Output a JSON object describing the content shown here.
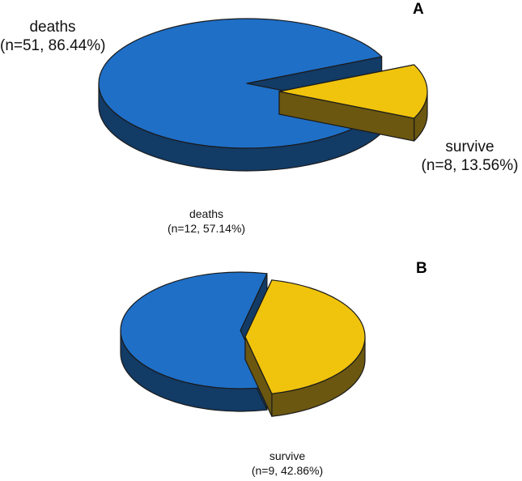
{
  "chart_data": [
    {
      "type": "pie",
      "panel": "A",
      "three_d": true,
      "exploded": "survive",
      "slices": [
        {
          "name": "deaths",
          "n": 51,
          "percent": 86.44,
          "line1": "deaths",
          "line2": "(n=51, 86.44%)",
          "color": "#1f6fc7",
          "side_color": "#123b66"
        },
        {
          "name": "survive",
          "n": 8,
          "percent": 13.56,
          "line1": "survive",
          "line2": "(n=8, 13.56%)",
          "color": "#f0c30c",
          "side_color": "#6b5710"
        }
      ]
    },
    {
      "type": "pie",
      "panel": "B",
      "three_d": true,
      "exploded": "survive",
      "slices": [
        {
          "name": "deaths",
          "n": 12,
          "percent": 57.14,
          "line1": "deaths",
          "line2": "(n=12, 57.14%)",
          "color": "#1f6fc7",
          "side_color": "#123b66"
        },
        {
          "name": "survive",
          "n": 9,
          "percent": 42.86,
          "line1": "survive",
          "line2": "(n=9, 42.86%)",
          "color": "#f0c30c",
          "side_color": "#6b5710"
        }
      ]
    }
  ]
}
